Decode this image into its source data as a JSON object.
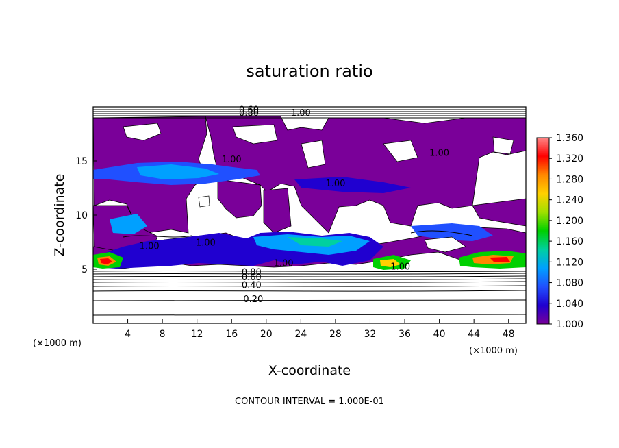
{
  "chart_data": {
    "type": "heatmap",
    "title": "saturation ratio",
    "xlabel": "X-coordinate",
    "ylabel": "Z-coordinate",
    "x_unit": "(×1000 m)",
    "z_unit": "(×1000 m)",
    "xlim": [
      0,
      50
    ],
    "ylim": [
      0,
      20
    ],
    "x_ticks": [
      4,
      8,
      12,
      16,
      20,
      24,
      28,
      32,
      36,
      40,
      44,
      48
    ],
    "y_ticks": [
      5,
      10,
      15
    ],
    "colorbar": {
      "min": 1.0,
      "max": 1.36,
      "labels": [
        "1.360",
        "1.320",
        "1.280",
        "1.240",
        "1.200",
        "1.160",
        "1.120",
        "1.080",
        "1.040",
        "1.000"
      ],
      "colors": [
        "#ff8888",
        "#ff0000",
        "#ff8800",
        "#ffd000",
        "#a0e000",
        "#00d000",
        "#00d0a0",
        "#00a0ff",
        "#2050ff",
        "#2000d0",
        "#7a0099"
      ]
    },
    "contour_labels": [
      {
        "text": "0.20",
        "x": 18.5,
        "z": 2.1
      },
      {
        "text": "0.40",
        "x": 18.3,
        "z": 3.4
      },
      {
        "text": "0.60",
        "x": 18.3,
        "z": 4.1
      },
      {
        "text": "0.80",
        "x": 18.3,
        "z": 4.6
      },
      {
        "text": "0.80",
        "x": 18.0,
        "z": 19.3
      },
      {
        "text": "0.60",
        "x": 18.0,
        "z": 19.6
      },
      {
        "text": "1.00",
        "x": 24.0,
        "z": 19.3
      },
      {
        "text": "1.00",
        "x": 16.0,
        "z": 15.0
      },
      {
        "text": "1.00",
        "x": 28.0,
        "z": 12.8
      },
      {
        "text": "1.00",
        "x": 40.0,
        "z": 15.6
      },
      {
        "text": "1.00",
        "x": 6.5,
        "z": 7.0
      },
      {
        "text": "1.00",
        "x": 13.0,
        "z": 7.3
      },
      {
        "text": "1.00",
        "x": 22.0,
        "z": 5.4
      },
      {
        "text": "1.00",
        "x": 35.5,
        "z": 5.1
      }
    ],
    "footer": "CONTOUR INTERVAL =  1.000E-01"
  }
}
